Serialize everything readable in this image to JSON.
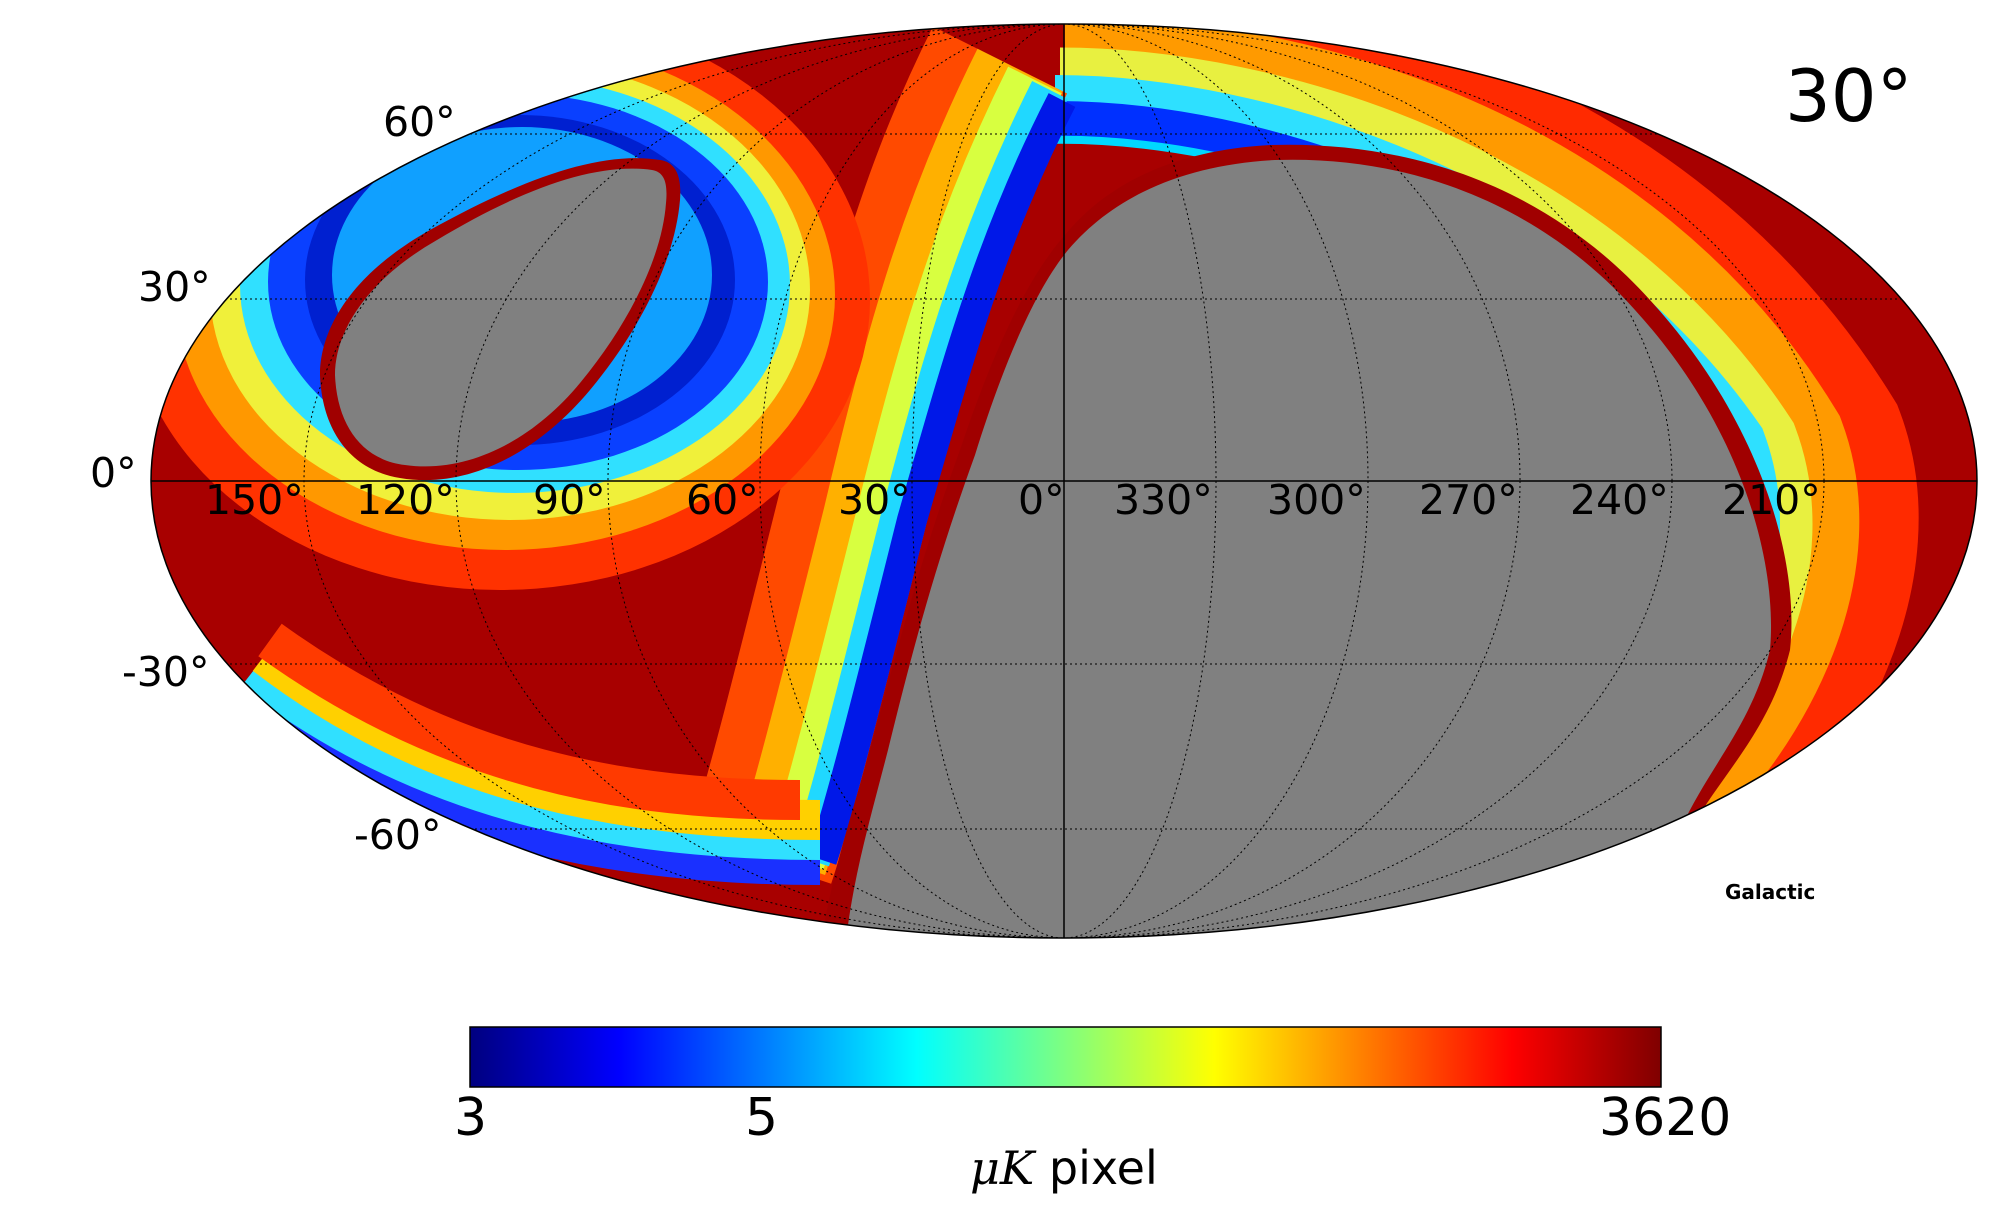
{
  "map": {
    "title": "30°",
    "coordinate_system": "Galactic",
    "projection": "mollweide",
    "latitude_labels": [
      "60°",
      "30°",
      "0°",
      "-30°",
      "-60°"
    ],
    "longitude_labels": [
      "150°",
      "120°",
      "90°",
      "60°",
      "30°",
      "0°",
      "330°",
      "300°",
      "270°",
      "240°",
      "210°"
    ],
    "masked_color": "#808080"
  },
  "colorbar": {
    "colormap": "jet",
    "scale": "logarithmic",
    "min_label": "3",
    "mid_label": "5",
    "max_label": "3620",
    "unit_symbol": "μK",
    "unit_text": "pixel"
  },
  "colors": {
    "jet_stops": [
      "#00007f",
      "#0000ff",
      "#007fff",
      "#00ffff",
      "#7fff7f",
      "#ffff00",
      "#ff7f00",
      "#ff0000",
      "#7f0000"
    ]
  }
}
